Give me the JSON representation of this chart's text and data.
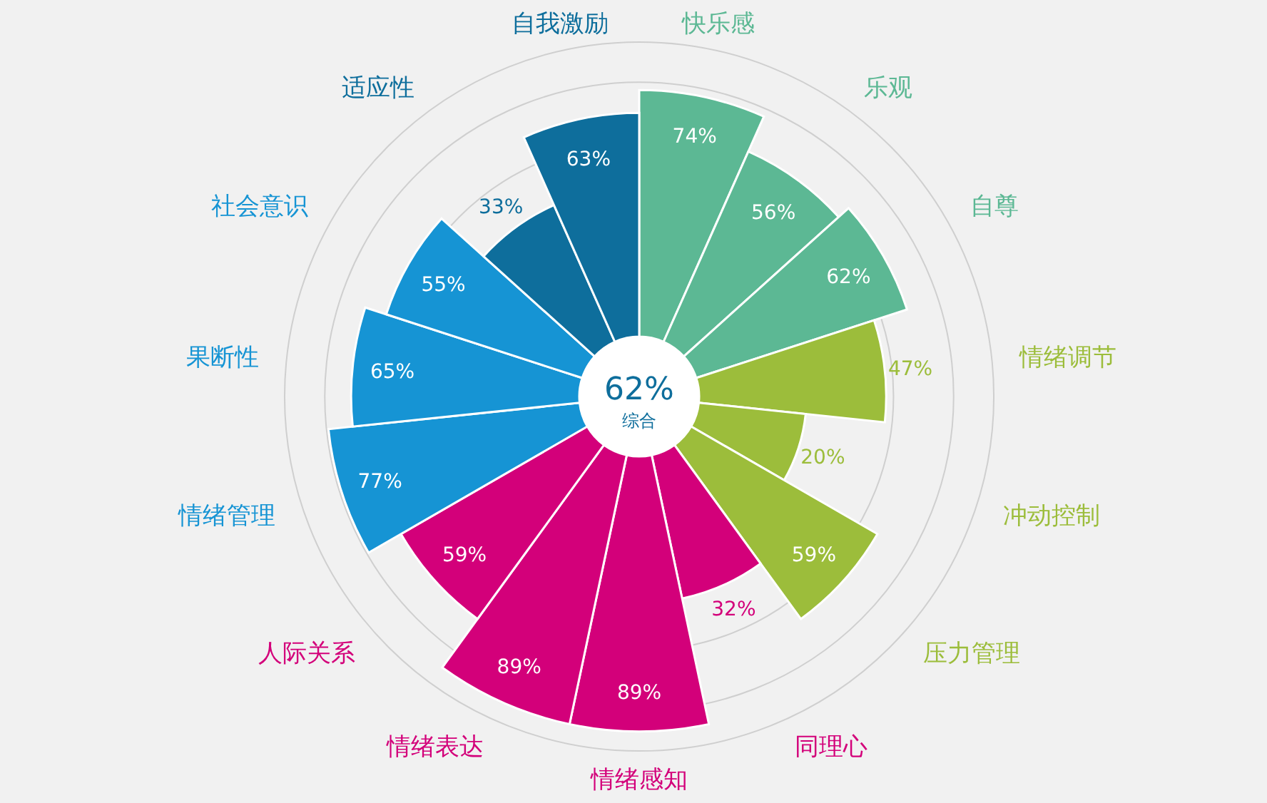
{
  "chart_data": {
    "type": "other",
    "categories": [
      "快乐感",
      "乐观",
      "自尊",
      "情绪调节",
      "冲动控制",
      "压力管理",
      "同理心",
      "情绪感知",
      "情绪表达",
      "人际关系",
      "情绪管理",
      "果断性",
      "社会意识",
      "适应性",
      "自我激励"
    ],
    "values": [
      74,
      56,
      62,
      47,
      20,
      59,
      32,
      89,
      89,
      59,
      77,
      65,
      55,
      33,
      63
    ],
    "colors": [
      "#5cb894",
      "#5cb894",
      "#5cb894",
      "#9cbd3b",
      "#9cbd3b",
      "#9cbd3b",
      "#d3007a",
      "#d3007a",
      "#d3007a",
      "#d3007a",
      "#1694d4",
      "#1694d4",
      "#1694d4",
      "#0e6e9c",
      "#0e6e9c"
    ],
    "value_labels": [
      "74%",
      "56%",
      "62%",
      "47%",
      "20%",
      "59%",
      "32%",
      "89%",
      "89%",
      "59%",
      "77%",
      "65%",
      "55%",
      "33%",
      "63%"
    ],
    "annotations": [
      "62%",
      "综合"
    ]
  }
}
